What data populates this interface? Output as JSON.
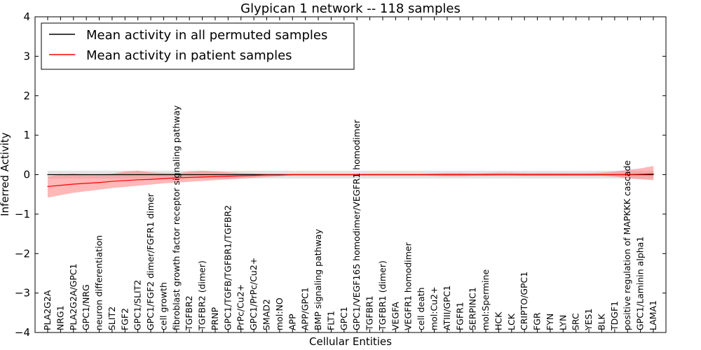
{
  "chart_data": {
    "type": "line",
    "title": "Glypican 1 network -- 118 samples",
    "xlabel": "Cellular Entities",
    "ylabel": "Inferred Activity",
    "ylim": [
      -4,
      4
    ],
    "yticks": [
      4,
      3,
      2,
      1,
      0,
      -1,
      -2,
      -3,
      -4
    ],
    "ytick_labels": [
      "4",
      "3",
      "2",
      "1",
      "0",
      "−1",
      "−2",
      "−3",
      "−4"
    ],
    "legend_position": "top-left",
    "categories": [
      "PLA2G2A",
      "NRG1",
      "PLA2G2A/GPC1",
      "GPC1/NRG",
      "neuron differentiation",
      "SLIT2",
      "FGF2",
      "GPC1/SLIT2",
      "GPC1/FGF2 dimer/FGFR1 dimer",
      "cell growth",
      "fibroblast growth factor receptor signaling pathway",
      "TGFBR2",
      "TGFBR2 (dimer)",
      "PRNP",
      "GPC1/TGFB/TGFBR1/TGFBR2",
      "PrPc/Cu2+",
      "GPC1/PrPc/Cu2+",
      "SMAD2",
      "mol:NO",
      "APP",
      "APP/GPC1",
      "BMP signaling pathway",
      "FLT1",
      "GPC1",
      "GPC1/VEGF165 homodimer/VEGFR1 homodimer",
      "TGFBR1",
      "TGFBR1 (dimer)",
      "VEGFA",
      "VEGFR1 homodimer",
      "cell death",
      "mol:Cu2+",
      "ATIII/GPC1",
      "FGFR1",
      "SERPINC1",
      "mol:Spermine",
      "HCK",
      "LCK",
      "CRIPTO/GPC1",
      "FGR",
      "FYN",
      "LYN",
      "SRC",
      "YES1",
      "BLK",
      "TDGF1",
      "positive regulation of MAPKKK cascade",
      "GPC1/Laminin alpha1",
      "LAMA1"
    ],
    "series": [
      {
        "name": "Mean activity in all permuted samples",
        "color": "#000000",
        "values": [
          0,
          0,
          0,
          0,
          0,
          0,
          0,
          0,
          0,
          0,
          0,
          0,
          0,
          0,
          0,
          0,
          0,
          0,
          0,
          0,
          0,
          0,
          0,
          0,
          0,
          0,
          0,
          0,
          0,
          0,
          0,
          0,
          0,
          0,
          0,
          0,
          0,
          0,
          0,
          0,
          0,
          0,
          0,
          0,
          0,
          0,
          0,
          0
        ],
        "band_lower": [
          -0.1,
          -0.1,
          -0.1,
          -0.1,
          -0.1,
          -0.1,
          -0.1,
          -0.1,
          -0.1,
          -0.1,
          -0.1,
          -0.1,
          -0.1,
          -0.1,
          -0.1,
          -0.1,
          -0.1,
          -0.1,
          -0.1,
          -0.1,
          -0.1,
          -0.1,
          -0.1,
          -0.1,
          -0.1,
          -0.1,
          -0.1,
          -0.1,
          -0.1,
          -0.1,
          -0.1,
          -0.1,
          -0.1,
          -0.1,
          -0.1,
          -0.1,
          -0.1,
          -0.1,
          -0.1,
          -0.1,
          -0.1,
          -0.1,
          -0.1,
          -0.1,
          -0.1,
          -0.1,
          -0.1,
          -0.1
        ],
        "band_upper": [
          0.1,
          0.1,
          0.1,
          0.1,
          0.1,
          0.1,
          0.1,
          0.1,
          0.1,
          0.1,
          0.1,
          0.1,
          0.1,
          0.1,
          0.1,
          0.1,
          0.1,
          0.1,
          0.1,
          0.1,
          0.1,
          0.1,
          0.1,
          0.1,
          0.1,
          0.1,
          0.1,
          0.1,
          0.1,
          0.1,
          0.1,
          0.1,
          0.1,
          0.1,
          0.1,
          0.1,
          0.1,
          0.1,
          0.1,
          0.1,
          0.1,
          0.1,
          0.1,
          0.1,
          0.1,
          0.1,
          0.1,
          0.1
        ],
        "band_color": "#b3b3b3"
      },
      {
        "name": "Mean activity in patient samples",
        "color": "#ff0000",
        "values": [
          -0.3,
          -0.27,
          -0.24,
          -0.22,
          -0.2,
          -0.17,
          -0.15,
          -0.13,
          -0.12,
          -0.1,
          -0.08,
          -0.07,
          -0.06,
          -0.05,
          -0.04,
          -0.03,
          -0.02,
          -0.01,
          -0.01,
          0,
          0,
          0,
          0,
          0,
          0,
          0,
          0,
          0,
          0,
          0,
          0,
          0,
          0,
          0,
          0,
          0,
          0,
          0,
          0,
          0,
          0,
          0,
          0,
          0,
          0,
          0,
          0.01,
          0.02
        ],
        "band_lower": [
          -0.58,
          -0.52,
          -0.46,
          -0.42,
          -0.38,
          -0.34,
          -0.31,
          -0.28,
          -0.25,
          -0.22,
          -0.2,
          -0.18,
          -0.16,
          -0.14,
          -0.12,
          -0.1,
          -0.08,
          -0.06,
          -0.04,
          -0.02,
          -0.02,
          -0.02,
          -0.02,
          -0.02,
          -0.02,
          -0.02,
          -0.02,
          -0.02,
          -0.02,
          -0.02,
          -0.03,
          -0.04,
          -0.04,
          -0.03,
          -0.03,
          -0.02,
          -0.02,
          -0.03,
          -0.03,
          -0.03,
          -0.03,
          -0.03,
          -0.03,
          -0.03,
          -0.05,
          -0.09,
          -0.12,
          -0.14
        ],
        "band_upper": [
          -0.05,
          0.0,
          0.02,
          0.0,
          0.0,
          0.02,
          0.08,
          0.1,
          0.06,
          0.04,
          0.03,
          0.08,
          0.1,
          0.08,
          0.06,
          0.04,
          0.03,
          0.02,
          0.02,
          0.02,
          0.02,
          0.02,
          0.02,
          0.02,
          0.02,
          0.02,
          0.02,
          0.02,
          0.02,
          0.02,
          0.03,
          0.04,
          0.04,
          0.03,
          0.04,
          0.05,
          0.05,
          0.04,
          0.04,
          0.04,
          0.04,
          0.04,
          0.04,
          0.05,
          0.08,
          0.12,
          0.16,
          0.22
        ],
        "band_color": "#ff7070"
      }
    ]
  }
}
